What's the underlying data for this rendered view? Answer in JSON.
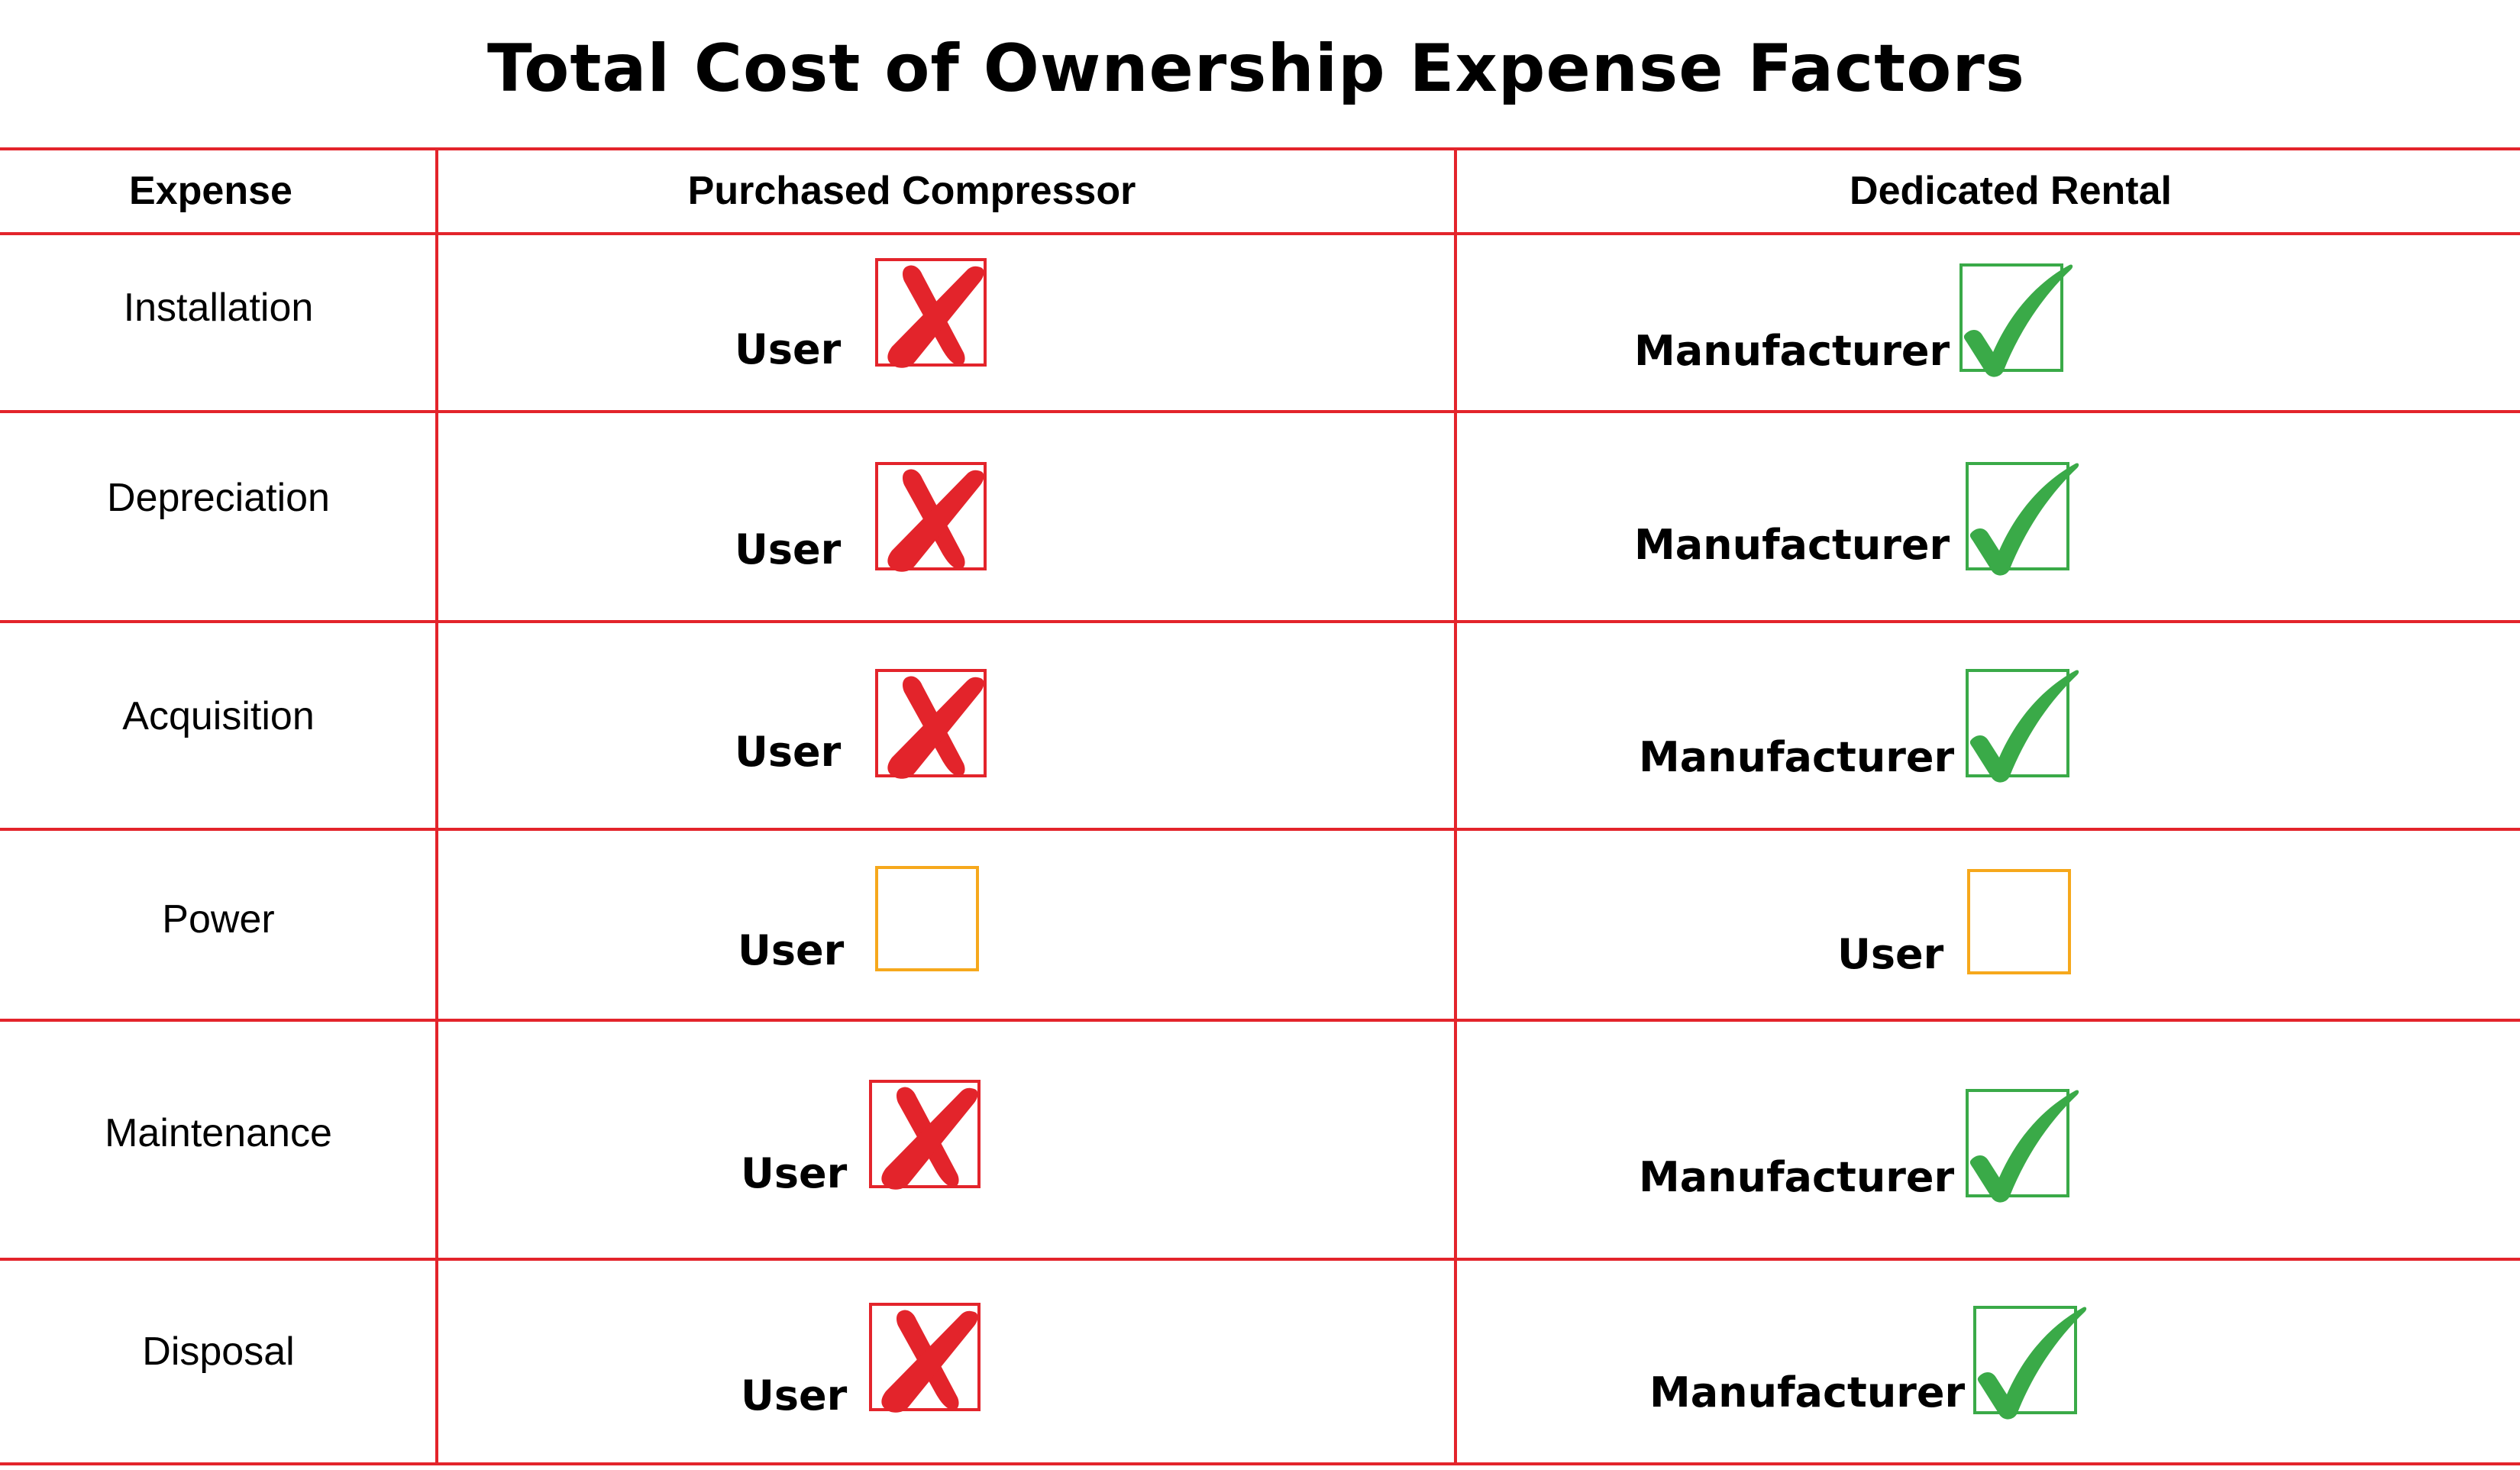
{
  "title": "Total Cost of Ownership Expense Factors",
  "colors": {
    "grid": "#e3242b",
    "cross": "#e3242b",
    "check": "#3aaa48",
    "neutral": "#f6a81c"
  },
  "columns": {
    "expense": "Expense",
    "purchased": "Purchased Compressor",
    "rental": "Dedicated Rental"
  },
  "rows": [
    {
      "expense": "Installation",
      "purchased": {
        "party": "User",
        "mark": "cross-icon"
      },
      "rental": {
        "party": "Manufacturer",
        "mark": "check-icon"
      }
    },
    {
      "expense": "Depreciation",
      "purchased": {
        "party": "User",
        "mark": "cross-icon"
      },
      "rental": {
        "party": "Manufacturer",
        "mark": "check-icon"
      }
    },
    {
      "expense": "Acquisition",
      "purchased": {
        "party": "User",
        "mark": "cross-icon"
      },
      "rental": {
        "party": "Manufacturer",
        "mark": "check-icon"
      }
    },
    {
      "expense": "Power",
      "purchased": {
        "party": "User",
        "mark": "empty-box-icon"
      },
      "rental": {
        "party": "User",
        "mark": "empty-box-icon"
      }
    },
    {
      "expense": "Maintenance",
      "purchased": {
        "party": "User",
        "mark": "cross-icon"
      },
      "rental": {
        "party": "Manufacturer",
        "mark": "check-icon"
      }
    },
    {
      "expense": "Disposal",
      "purchased": {
        "party": "User",
        "mark": "cross-icon"
      },
      "rental": {
        "party": "Manufacturer",
        "mark": "check-icon"
      }
    }
  ]
}
